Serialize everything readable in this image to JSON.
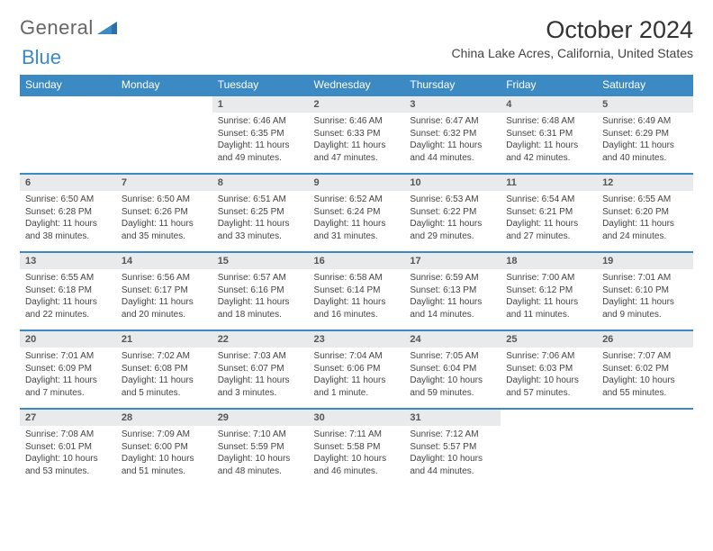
{
  "logo": {
    "text1": "General",
    "text2": "Blue"
  },
  "title": "October 2024",
  "location": "China Lake Acres, California, United States",
  "colors": {
    "accent": "#3b8ac4",
    "daynum_bg": "#e9eaeb",
    "text": "#444444",
    "background": "#ffffff"
  },
  "day_names": [
    "Sunday",
    "Monday",
    "Tuesday",
    "Wednesday",
    "Thursday",
    "Friday",
    "Saturday"
  ],
  "weeks": [
    [
      {
        "empty": true
      },
      {
        "empty": true
      },
      {
        "num": "1",
        "sunrise": "Sunrise: 6:46 AM",
        "sunset": "Sunset: 6:35 PM",
        "daylight": "Daylight: 11 hours and 49 minutes."
      },
      {
        "num": "2",
        "sunrise": "Sunrise: 6:46 AM",
        "sunset": "Sunset: 6:33 PM",
        "daylight": "Daylight: 11 hours and 47 minutes."
      },
      {
        "num": "3",
        "sunrise": "Sunrise: 6:47 AM",
        "sunset": "Sunset: 6:32 PM",
        "daylight": "Daylight: 11 hours and 44 minutes."
      },
      {
        "num": "4",
        "sunrise": "Sunrise: 6:48 AM",
        "sunset": "Sunset: 6:31 PM",
        "daylight": "Daylight: 11 hours and 42 minutes."
      },
      {
        "num": "5",
        "sunrise": "Sunrise: 6:49 AM",
        "sunset": "Sunset: 6:29 PM",
        "daylight": "Daylight: 11 hours and 40 minutes."
      }
    ],
    [
      {
        "num": "6",
        "sunrise": "Sunrise: 6:50 AM",
        "sunset": "Sunset: 6:28 PM",
        "daylight": "Daylight: 11 hours and 38 minutes."
      },
      {
        "num": "7",
        "sunrise": "Sunrise: 6:50 AM",
        "sunset": "Sunset: 6:26 PM",
        "daylight": "Daylight: 11 hours and 35 minutes."
      },
      {
        "num": "8",
        "sunrise": "Sunrise: 6:51 AM",
        "sunset": "Sunset: 6:25 PM",
        "daylight": "Daylight: 11 hours and 33 minutes."
      },
      {
        "num": "9",
        "sunrise": "Sunrise: 6:52 AM",
        "sunset": "Sunset: 6:24 PM",
        "daylight": "Daylight: 11 hours and 31 minutes."
      },
      {
        "num": "10",
        "sunrise": "Sunrise: 6:53 AM",
        "sunset": "Sunset: 6:22 PM",
        "daylight": "Daylight: 11 hours and 29 minutes."
      },
      {
        "num": "11",
        "sunrise": "Sunrise: 6:54 AM",
        "sunset": "Sunset: 6:21 PM",
        "daylight": "Daylight: 11 hours and 27 minutes."
      },
      {
        "num": "12",
        "sunrise": "Sunrise: 6:55 AM",
        "sunset": "Sunset: 6:20 PM",
        "daylight": "Daylight: 11 hours and 24 minutes."
      }
    ],
    [
      {
        "num": "13",
        "sunrise": "Sunrise: 6:55 AM",
        "sunset": "Sunset: 6:18 PM",
        "daylight": "Daylight: 11 hours and 22 minutes."
      },
      {
        "num": "14",
        "sunrise": "Sunrise: 6:56 AM",
        "sunset": "Sunset: 6:17 PM",
        "daylight": "Daylight: 11 hours and 20 minutes."
      },
      {
        "num": "15",
        "sunrise": "Sunrise: 6:57 AM",
        "sunset": "Sunset: 6:16 PM",
        "daylight": "Daylight: 11 hours and 18 minutes."
      },
      {
        "num": "16",
        "sunrise": "Sunrise: 6:58 AM",
        "sunset": "Sunset: 6:14 PM",
        "daylight": "Daylight: 11 hours and 16 minutes."
      },
      {
        "num": "17",
        "sunrise": "Sunrise: 6:59 AM",
        "sunset": "Sunset: 6:13 PM",
        "daylight": "Daylight: 11 hours and 14 minutes."
      },
      {
        "num": "18",
        "sunrise": "Sunrise: 7:00 AM",
        "sunset": "Sunset: 6:12 PM",
        "daylight": "Daylight: 11 hours and 11 minutes."
      },
      {
        "num": "19",
        "sunrise": "Sunrise: 7:01 AM",
        "sunset": "Sunset: 6:10 PM",
        "daylight": "Daylight: 11 hours and 9 minutes."
      }
    ],
    [
      {
        "num": "20",
        "sunrise": "Sunrise: 7:01 AM",
        "sunset": "Sunset: 6:09 PM",
        "daylight": "Daylight: 11 hours and 7 minutes."
      },
      {
        "num": "21",
        "sunrise": "Sunrise: 7:02 AM",
        "sunset": "Sunset: 6:08 PM",
        "daylight": "Daylight: 11 hours and 5 minutes."
      },
      {
        "num": "22",
        "sunrise": "Sunrise: 7:03 AM",
        "sunset": "Sunset: 6:07 PM",
        "daylight": "Daylight: 11 hours and 3 minutes."
      },
      {
        "num": "23",
        "sunrise": "Sunrise: 7:04 AM",
        "sunset": "Sunset: 6:06 PM",
        "daylight": "Daylight: 11 hours and 1 minute."
      },
      {
        "num": "24",
        "sunrise": "Sunrise: 7:05 AM",
        "sunset": "Sunset: 6:04 PM",
        "daylight": "Daylight: 10 hours and 59 minutes."
      },
      {
        "num": "25",
        "sunrise": "Sunrise: 7:06 AM",
        "sunset": "Sunset: 6:03 PM",
        "daylight": "Daylight: 10 hours and 57 minutes."
      },
      {
        "num": "26",
        "sunrise": "Sunrise: 7:07 AM",
        "sunset": "Sunset: 6:02 PM",
        "daylight": "Daylight: 10 hours and 55 minutes."
      }
    ],
    [
      {
        "num": "27",
        "sunrise": "Sunrise: 7:08 AM",
        "sunset": "Sunset: 6:01 PM",
        "daylight": "Daylight: 10 hours and 53 minutes."
      },
      {
        "num": "28",
        "sunrise": "Sunrise: 7:09 AM",
        "sunset": "Sunset: 6:00 PM",
        "daylight": "Daylight: 10 hours and 51 minutes."
      },
      {
        "num": "29",
        "sunrise": "Sunrise: 7:10 AM",
        "sunset": "Sunset: 5:59 PM",
        "daylight": "Daylight: 10 hours and 48 minutes."
      },
      {
        "num": "30",
        "sunrise": "Sunrise: 7:11 AM",
        "sunset": "Sunset: 5:58 PM",
        "daylight": "Daylight: 10 hours and 46 minutes."
      },
      {
        "num": "31",
        "sunrise": "Sunrise: 7:12 AM",
        "sunset": "Sunset: 5:57 PM",
        "daylight": "Daylight: 10 hours and 44 minutes."
      },
      {
        "empty": true
      },
      {
        "empty": true
      }
    ]
  ]
}
